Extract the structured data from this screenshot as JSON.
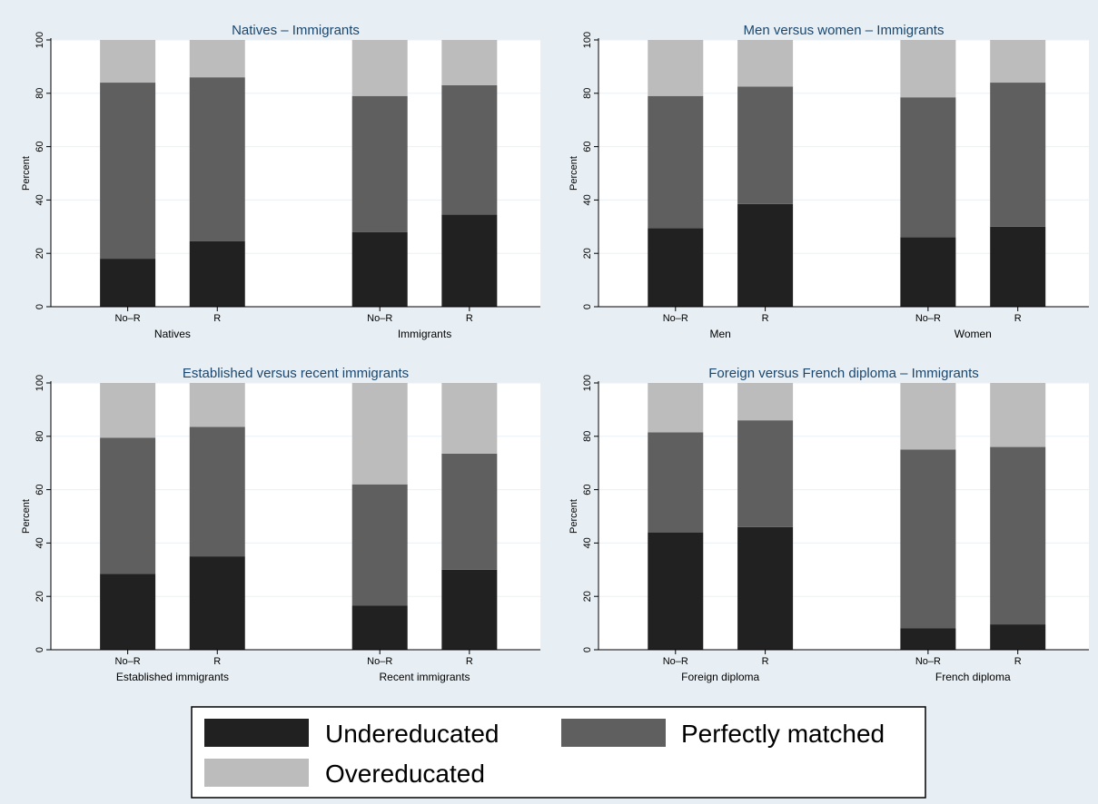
{
  "chart_data": [
    {
      "type": "bar",
      "stacked": true,
      "title": "Natives – Immigrants",
      "ylabel": "Percent",
      "ylim": [
        0,
        100
      ],
      "yticks": [
        0,
        20,
        40,
        60,
        80,
        100
      ],
      "groups": [
        {
          "label": "Natives",
          "bars": [
            {
              "label": "No–R",
              "values": [
                18,
                66,
                16
              ]
            },
            {
              "label": "R",
              "values": [
                24.5,
                61.5,
                14
              ]
            }
          ]
        },
        {
          "label": "Immigrants",
          "bars": [
            {
              "label": "No–R",
              "values": [
                28,
                51,
                21
              ]
            },
            {
              "label": "R",
              "values": [
                34.5,
                48.5,
                17
              ]
            }
          ]
        }
      ]
    },
    {
      "type": "bar",
      "stacked": true,
      "title": "Men versus women – Immigrants",
      "ylabel": "Percent",
      "ylim": [
        0,
        100
      ],
      "yticks": [
        0,
        20,
        40,
        60,
        80,
        100
      ],
      "groups": [
        {
          "label": "Men",
          "bars": [
            {
              "label": "No–R",
              "values": [
                29.5,
                49.5,
                21
              ]
            },
            {
              "label": "R",
              "values": [
                38.5,
                44,
                17.5
              ]
            }
          ]
        },
        {
          "label": "Women",
          "bars": [
            {
              "label": "No–R",
              "values": [
                26,
                52.5,
                21.5
              ]
            },
            {
              "label": "R",
              "values": [
                30,
                54,
                16
              ]
            }
          ]
        }
      ]
    },
    {
      "type": "bar",
      "stacked": true,
      "title": "Established versus recent immigrants",
      "ylabel": "Percent",
      "ylim": [
        0,
        100
      ],
      "yticks": [
        0,
        20,
        40,
        60,
        80,
        100
      ],
      "groups": [
        {
          "label": "Established immigrants",
          "bars": [
            {
              "label": "No–R",
              "values": [
                28.5,
                51,
                20.5
              ]
            },
            {
              "label": "R",
              "values": [
                35,
                48.5,
                16.5
              ]
            }
          ]
        },
        {
          "label": "Recent immigrants",
          "bars": [
            {
              "label": "No–R",
              "values": [
                16.5,
                45.5,
                38
              ]
            },
            {
              "label": "R",
              "values": [
                30,
                43.5,
                26.5
              ]
            }
          ]
        }
      ]
    },
    {
      "type": "bar",
      "stacked": true,
      "title": "Foreign versus French diploma – Immigrants",
      "ylabel": "Percent",
      "ylim": [
        0,
        100
      ],
      "yticks": [
        0,
        20,
        40,
        60,
        80,
        100
      ],
      "groups": [
        {
          "label": "Foreign diploma",
          "bars": [
            {
              "label": "No–R",
              "values": [
                44,
                37.5,
                18.5
              ]
            },
            {
              "label": "R",
              "values": [
                46,
                40,
                14
              ]
            }
          ]
        },
        {
          "label": "French diploma",
          "bars": [
            {
              "label": "No–R",
              "values": [
                8,
                67,
                25
              ]
            },
            {
              "label": "R",
              "values": [
                9.5,
                66.5,
                24
              ]
            }
          ]
        }
      ]
    }
  ],
  "legend": [
    {
      "label": "Undereducated",
      "color": "#212121"
    },
    {
      "label": "Perfectly matched",
      "color": "#5f5f5f"
    },
    {
      "label": "Overeducated",
      "color": "#bcbcbc"
    }
  ],
  "colors": {
    "background": "#e8eff4",
    "plot_background": "#ffffff",
    "grid": "#eaf1f5",
    "title": "#1a476f",
    "segments": [
      "#212121",
      "#5f5f5f",
      "#bcbcbc"
    ]
  }
}
